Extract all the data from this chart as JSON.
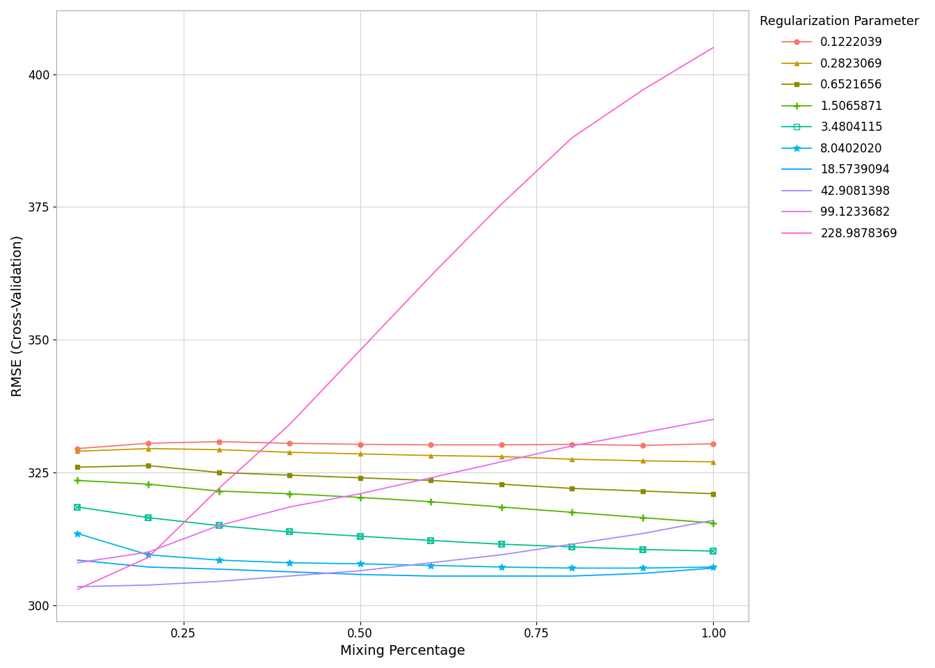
{
  "xlabel": "Mixing Percentage",
  "ylabel": "RMSE (Cross-Validation)",
  "legend_title": "Regularization Parameter",
  "xlim_min": 0.07,
  "xlim_max": 1.05,
  "ylim_min": 297,
  "ylim_max": 412,
  "background_color": "#ffffff",
  "grid_color": "#d3d3d3",
  "x_values": [
    0.1,
    0.2,
    0.3,
    0.4,
    0.5,
    0.6,
    0.7,
    0.8,
    0.9,
    1.0
  ],
  "series": [
    {
      "label": "0.1222039",
      "color": "#F8766D",
      "marker": "o",
      "markersize": 5,
      "linewidth": 1.3,
      "y": [
        329.5,
        330.5,
        330.8,
        330.5,
        330.3,
        330.2,
        330.2,
        330.3,
        330.1,
        330.4
      ]
    },
    {
      "label": "0.2823069",
      "color": "#C49A00",
      "marker": "^",
      "markersize": 5,
      "linewidth": 1.3,
      "y": [
        329.0,
        329.5,
        329.3,
        328.8,
        328.5,
        328.2,
        328.0,
        327.5,
        327.2,
        327.0
      ]
    },
    {
      "label": "0.6521656",
      "color": "#8B8B00",
      "marker": "s",
      "markersize": 5,
      "linewidth": 1.3,
      "y": [
        326.0,
        326.3,
        325.0,
        324.5,
        324.0,
        323.5,
        322.8,
        322.0,
        321.5,
        321.0
      ]
    },
    {
      "label": "1.5065871",
      "color": "#53B400",
      "marker": "plus",
      "markersize": 7,
      "linewidth": 1.3,
      "y": [
        323.5,
        322.8,
        321.5,
        321.0,
        320.3,
        319.5,
        318.5,
        317.5,
        316.5,
        315.5
      ]
    },
    {
      "label": "3.4804115",
      "color": "#00C094",
      "marker": "sq_x",
      "markersize": 6,
      "linewidth": 1.3,
      "y": [
        318.5,
        316.5,
        315.0,
        313.8,
        313.0,
        312.2,
        311.5,
        311.0,
        310.5,
        310.2
      ]
    },
    {
      "label": "8.0402020",
      "color": "#00B6EB",
      "marker": "*",
      "markersize": 7,
      "linewidth": 1.3,
      "y": [
        313.5,
        309.5,
        308.5,
        308.0,
        307.8,
        307.5,
        307.2,
        307.0,
        307.0,
        307.2
      ]
    },
    {
      "label": "18.5739094",
      "color": "#06A4FF",
      "marker": null,
      "markersize": 0,
      "linewidth": 1.3,
      "y": [
        308.5,
        307.2,
        306.8,
        306.3,
        305.8,
        305.5,
        305.5,
        305.5,
        306.0,
        307.0
      ]
    },
    {
      "label": "42.9081398",
      "color": "#A58AFF",
      "marker": null,
      "markersize": 0,
      "linewidth": 1.3,
      "y": [
        303.5,
        303.8,
        304.5,
        305.5,
        306.5,
        308.0,
        309.5,
        311.5,
        313.5,
        316.0
      ]
    },
    {
      "label": "99.1233682",
      "color": "#E76BF3",
      "marker": null,
      "markersize": 0,
      "linewidth": 1.3,
      "y": [
        308.0,
        310.0,
        315.0,
        318.5,
        321.0,
        324.0,
        327.0,
        330.0,
        332.5,
        335.0
      ]
    },
    {
      "label": "228.9878369",
      "color": "#FF61CC",
      "marker": null,
      "markersize": 0,
      "linewidth": 1.3,
      "y": [
        303.0,
        309.0,
        322.0,
        334.0,
        348.0,
        362.0,
        375.5,
        388.0,
        397.0,
        405.0
      ]
    }
  ],
  "xticks": [
    0.25,
    0.5,
    0.75,
    1.0
  ],
  "yticks": [
    300,
    325,
    350,
    375,
    400
  ],
  "axis_label_fontsize": 14,
  "tick_fontsize": 12,
  "legend_fontsize": 12,
  "legend_title_fontsize": 13
}
